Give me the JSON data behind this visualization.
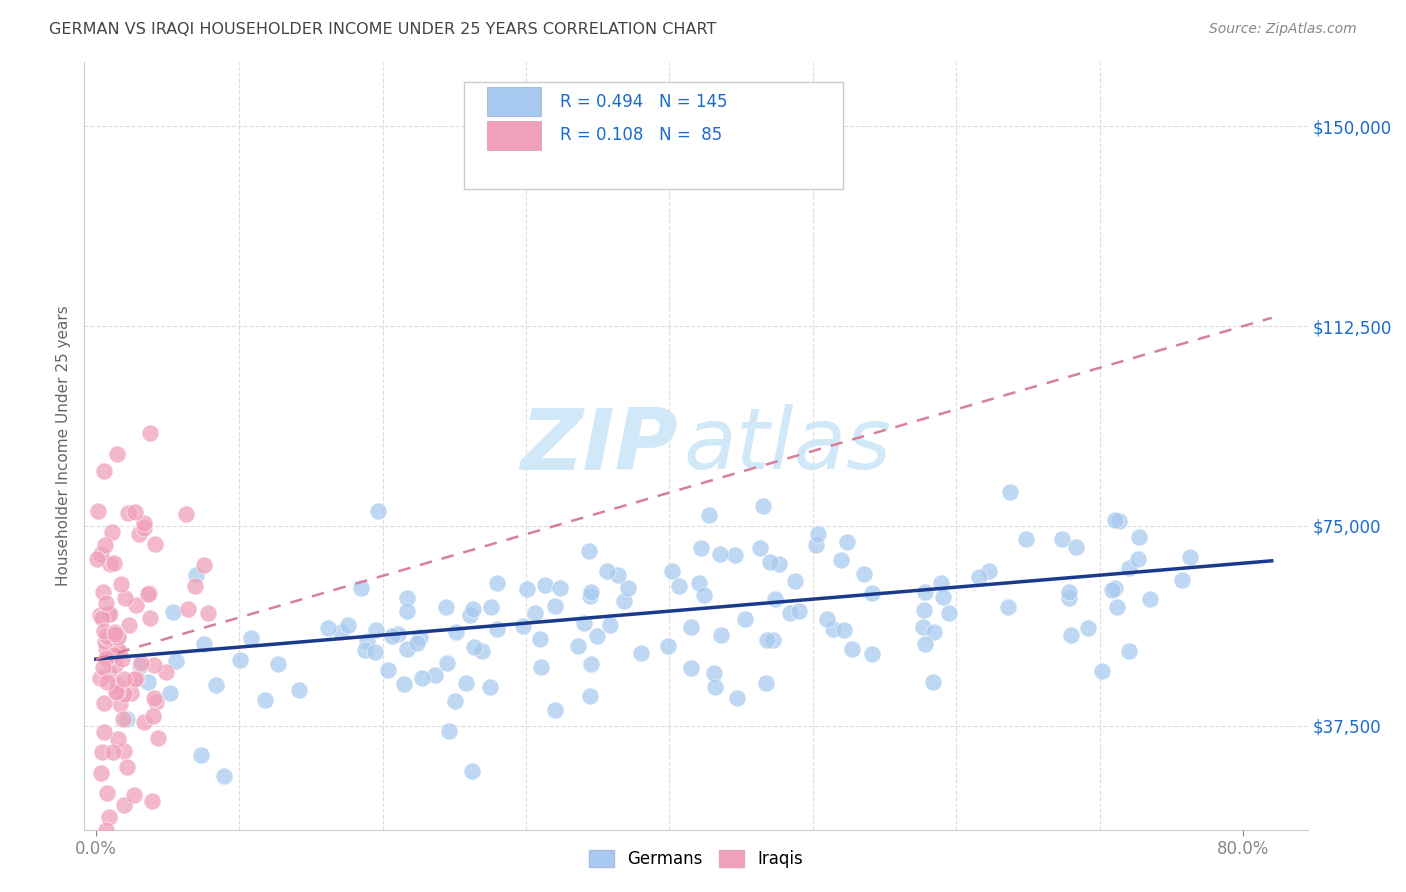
{
  "title": "GERMAN VS IRAQI HOUSEHOLDER INCOME UNDER 25 YEARS CORRELATION CHART",
  "source": "Source: ZipAtlas.com",
  "ylabel": "Householder Income Under 25 years",
  "ytick_labels": [
    "$37,500",
    "$75,000",
    "$112,500",
    "$150,000"
  ],
  "ytick_values": [
    37500,
    75000,
    112500,
    150000
  ],
  "ymin": 18000,
  "ymax": 162000,
  "xmin": -0.008,
  "xmax": 0.845,
  "german_R": "0.494",
  "german_N": "145",
  "iraqi_R": "0.108",
  "iraqi_N": "85",
  "german_color": "#a8caf0",
  "iraqi_color": "#f0a0b8",
  "german_line_color": "#1a3a8c",
  "iraqi_line_color": "#d88098",
  "watermark_zip": "ZIP",
  "watermark_atlas": "atlas",
  "watermark_color": "#d0e8f8",
  "legend_r_color": "#1a6ad0",
  "title_color": "#444444",
  "source_color": "#888888",
  "grid_color": "#dddddd",
  "spine_color": "#cccccc",
  "tick_color": "#888888",
  "xtick_positions": [
    0.0,
    0.8
  ],
  "xtick_labels": [
    "0.0%",
    "80.0%"
  ]
}
